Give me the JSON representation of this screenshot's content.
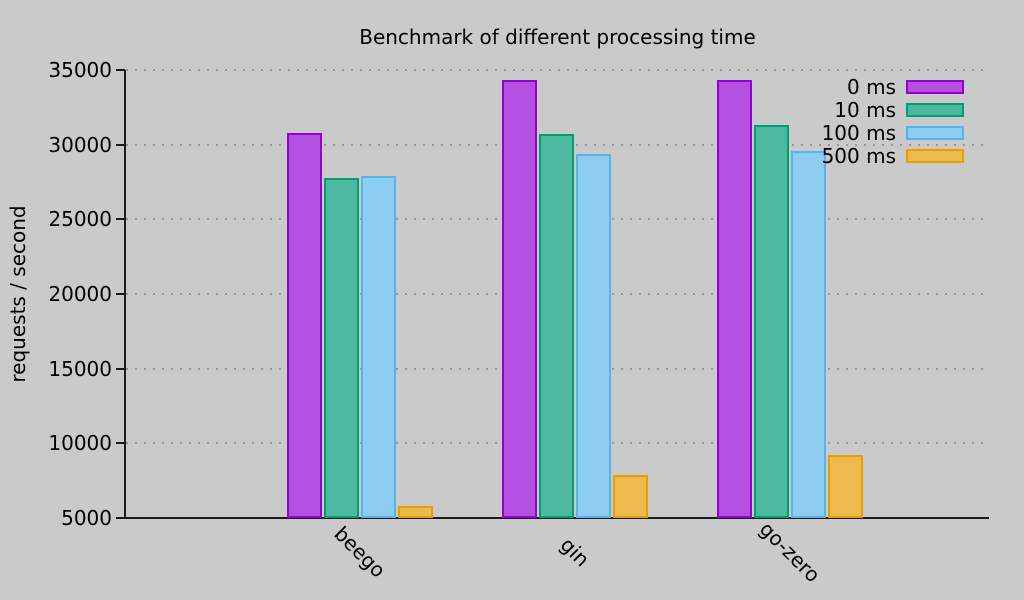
{
  "title": "Benchmark of different processing time",
  "ylabel": "requests / second",
  "background_color": "#cacaca",
  "chart_data": {
    "type": "bar",
    "title": "Benchmark of different processing time",
    "xlabel": "",
    "ylabel": "requests / second",
    "categories": [
      "beego",
      "gin",
      "go-zero"
    ],
    "series": [
      {
        "name": "0 ms",
        "values": [
          30750,
          34350,
          34300
        ],
        "border_color": "#9400d3",
        "fill_color": "#b350e0"
      },
      {
        "name": "10 ms",
        "values": [
          27800,
          30700,
          31300
        ],
        "border_color": "#009e73",
        "fill_color": "#4db9a1"
      },
      {
        "name": "100 ms",
        "values": [
          27900,
          29400,
          29600
        ],
        "border_color": "#56b4e9",
        "fill_color": "#8ccdf1"
      },
      {
        "name": "500 ms",
        "values": [
          5800,
          7900,
          9200
        ],
        "border_color": "#e69f00",
        "fill_color": "#ecba4e"
      }
    ],
    "ylim": [
      5000,
      35000
    ],
    "yticks": [
      5000,
      10000,
      15000,
      20000,
      25000,
      30000,
      35000
    ],
    "grid": true,
    "legend_position": "top-right"
  }
}
